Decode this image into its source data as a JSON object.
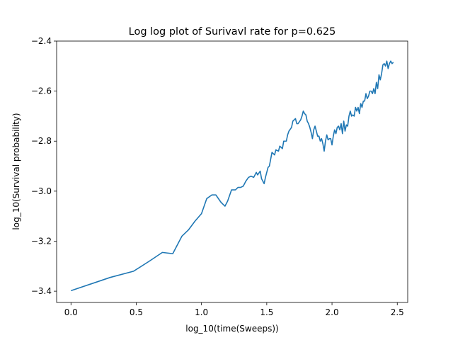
{
  "chart_data": {
    "type": "line",
    "title": "Log log plot of Surivavl rate for p=0.625",
    "xlabel": "log_10(time(Sweeps))",
    "ylabel": "log_10(Survival probability)",
    "xlim": [
      -0.11,
      2.58
    ],
    "ylim": [
      -3.445,
      -2.4
    ],
    "xticks": [
      0.0,
      0.5,
      1.0,
      1.5,
      2.0,
      2.5
    ],
    "xtick_labels": [
      "0.0",
      "0.5",
      "1.0",
      "1.5",
      "2.0",
      "2.5"
    ],
    "yticks": [
      -3.4,
      -3.2,
      -3.0,
      -2.8,
      -2.6,
      -2.4
    ],
    "ytick_labels": [
      "−3.4",
      "−3.2",
      "−3.0",
      "−2.8",
      "−2.6",
      "−2.4"
    ],
    "grid": false,
    "series": [
      {
        "color": "#1f77b4",
        "x": [
          0.0,
          0.3,
          0.48,
          0.6,
          0.7,
          0.78,
          0.85,
          0.9,
          0.95,
          1.0,
          1.04,
          1.08,
          1.11,
          1.15,
          1.18,
          1.2,
          1.23,
          1.26,
          1.28,
          1.3,
          1.32,
          1.34,
          1.36,
          1.38,
          1.4,
          1.42,
          1.43,
          1.45,
          1.46,
          1.48,
          1.49,
          1.51,
          1.52,
          1.54,
          1.56,
          1.57,
          1.59,
          1.6,
          1.62,
          1.63,
          1.65,
          1.66,
          1.67,
          1.69,
          1.7,
          1.72,
          1.73,
          1.74,
          1.76,
          1.77,
          1.78,
          1.79,
          1.8,
          1.81,
          1.82,
          1.83,
          1.84,
          1.85,
          1.86,
          1.87,
          1.88,
          1.89,
          1.9,
          1.91,
          1.92,
          1.93,
          1.94,
          1.95,
          1.96,
          1.97,
          1.98,
          1.99,
          2.0,
          2.01,
          2.02,
          2.03,
          2.04,
          2.05,
          2.06,
          2.07,
          2.08,
          2.09,
          2.1,
          2.11,
          2.12,
          2.13,
          2.14,
          2.15,
          2.16,
          2.17,
          2.18,
          2.19,
          2.2,
          2.21,
          2.22,
          2.23,
          2.24,
          2.25,
          2.26,
          2.27,
          2.28,
          2.29,
          2.3,
          2.31,
          2.32,
          2.33,
          2.34,
          2.35,
          2.36,
          2.37,
          2.38,
          2.39,
          2.4,
          2.41,
          2.42,
          2.43,
          2.44,
          2.45,
          2.46,
          2.47
        ],
        "y": [
          -3.398,
          -3.345,
          -3.32,
          -3.28,
          -3.245,
          -3.25,
          -3.18,
          -3.155,
          -3.12,
          -3.09,
          -3.03,
          -3.015,
          -3.015,
          -3.045,
          -3.06,
          -3.04,
          -2.995,
          -2.995,
          -2.985,
          -2.985,
          -2.98,
          -2.96,
          -2.945,
          -2.94,
          -2.945,
          -2.925,
          -2.935,
          -2.92,
          -2.95,
          -2.97,
          -2.945,
          -2.905,
          -2.9,
          -2.845,
          -2.855,
          -2.835,
          -2.84,
          -2.82,
          -2.83,
          -2.8,
          -2.8,
          -2.775,
          -2.76,
          -2.745,
          -2.72,
          -2.71,
          -2.73,
          -2.73,
          -2.715,
          -2.7,
          -2.68,
          -2.69,
          -2.695,
          -2.72,
          -2.73,
          -2.745,
          -2.765,
          -2.79,
          -2.755,
          -2.74,
          -2.76,
          -2.78,
          -2.78,
          -2.8,
          -2.79,
          -2.81,
          -2.84,
          -2.8,
          -2.775,
          -2.795,
          -2.79,
          -2.79,
          -2.815,
          -2.78,
          -2.755,
          -2.77,
          -2.745,
          -2.74,
          -2.755,
          -2.73,
          -2.77,
          -2.72,
          -2.76,
          -2.735,
          -2.74,
          -2.7,
          -2.68,
          -2.7,
          -2.695,
          -2.7,
          -2.665,
          -2.68,
          -2.665,
          -2.69,
          -2.65,
          -2.665,
          -2.64,
          -2.64,
          -2.61,
          -2.63,
          -2.62,
          -2.6,
          -2.6,
          -2.61,
          -2.59,
          -2.61,
          -2.565,
          -2.59,
          -2.535,
          -2.555,
          -2.53,
          -2.495,
          -2.49,
          -2.5,
          -2.48,
          -2.51,
          -2.49,
          -2.48,
          -2.49,
          -2.485
        ]
      }
    ]
  }
}
